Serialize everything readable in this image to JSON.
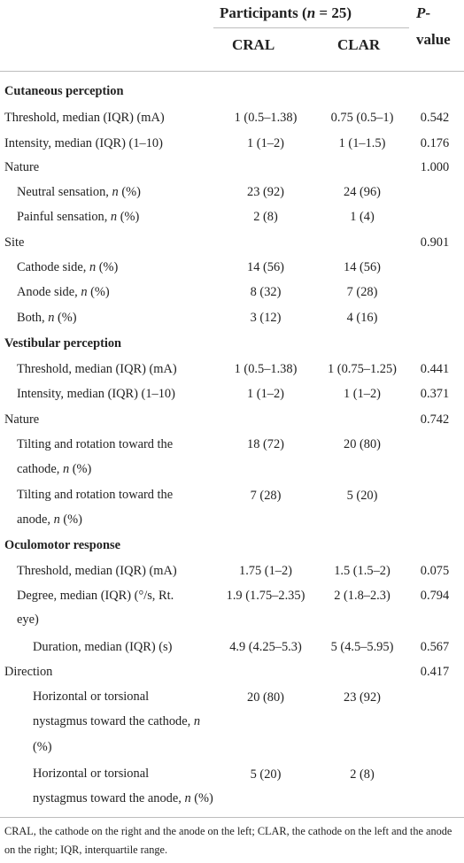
{
  "header": {
    "group_label": "Participants (",
    "group_n_var": "n",
    "group_n_val": " = 25)",
    "pvalue_var": "P",
    "pvalue_suffix": "-value",
    "col_cral": "CRAL",
    "col_clar": "CLAR"
  },
  "rows": {
    "cut_head": "Cutaneous perception",
    "cut_thr": {
      "label": "Threshold, median (IQR) (mA)",
      "cral": "1 (0.5–1.38)",
      "clar": "0.75 (0.5–1)",
      "p": "0.542"
    },
    "cut_int": {
      "label": "Intensity, median (IQR) (1–10)",
      "cral": "1 (1–2)",
      "clar": "1 (1–1.5)",
      "p": "0.176"
    },
    "cut_nat": {
      "label": "Nature",
      "p": "1.000"
    },
    "cut_neu": {
      "label": "Neutral sensation, ",
      "nvar": "n",
      "tail": " (%)",
      "cral": "23 (92)",
      "clar": "24 (96)"
    },
    "cut_pain": {
      "label": "Painful sensation, ",
      "nvar": "n",
      "tail": " (%)",
      "cral": "2 (8)",
      "clar": "1 (4)"
    },
    "cut_site": {
      "label": "Site",
      "p": "0.901"
    },
    "cut_cath": {
      "label": "Cathode side, ",
      "nvar": "n",
      "tail": " (%)",
      "cral": "14 (56)",
      "clar": "14 (56)"
    },
    "cut_anod": {
      "label": "Anode side, ",
      "nvar": "n",
      "tail": " (%)",
      "cral": "8 (32)",
      "clar": "7 (28)"
    },
    "cut_both": {
      "label": "Both, ",
      "nvar": "n",
      "tail": " (%)",
      "cral": "3 (12)",
      "clar": "4 (16)"
    },
    "ves_head": "Vestibular perception",
    "ves_thr": {
      "label": "Threshold, median (IQR) (mA)",
      "cral": "1 (0.5–1.38)",
      "clar": "1 (0.75–1.25)",
      "p": "0.441"
    },
    "ves_int": {
      "label": "Intensity, median (IQR) (1–10)",
      "cral": "1 (1–2)",
      "clar": "1 (1–2)",
      "p": "0.371"
    },
    "ves_nat": {
      "label": "Nature",
      "p": "0.742"
    },
    "ves_cath": {
      "line1": "Tilting and rotation toward the",
      "line2a": "cathode, ",
      "nvar": "n",
      "tail": " (%)",
      "cral": "18 (72)",
      "clar": "20 (80)"
    },
    "ves_anod": {
      "line1": "Tilting and rotation toward the",
      "line2a": "anode, ",
      "nvar": "n",
      "tail": " (%)",
      "cral": "7 (28)",
      "clar": "5 (20)"
    },
    "ocu_head": "Oculomotor response",
    "ocu_thr": {
      "label": "Threshold, median (IQR) (mA)",
      "cral": "1.75 (1–2)",
      "clar": "1.5 (1.5–2)",
      "p": "0.075"
    },
    "ocu_deg": {
      "line1": "Degree, median (IQR) (°/s, Rt.",
      "line2": "eye)",
      "cral": "1.9 (1.75–2.35)",
      "clar": "2 (1.8–2.3)",
      "p": "0.794"
    },
    "ocu_dur": {
      "label": "Duration, median (IQR) (s)",
      "cral": "4.9 (4.25–5.3)",
      "clar": "5 (4.5–5.95)",
      "p": "0.567"
    },
    "ocu_dir": {
      "label": "Direction",
      "p": "0.417"
    },
    "ocu_hcath": {
      "line1": "Horizontal or torsional",
      "line2a": "nystagmus toward the cathode, ",
      "nvar": "n",
      "line3": "(%)",
      "cral": "20 (80)",
      "clar": "23 (92)"
    },
    "ocu_hanod": {
      "line1": "Horizontal or torsional",
      "line2a": "nystagmus toward the anode, ",
      "nvar": "n",
      "tail": " (%)",
      "cral": "5 (20)",
      "clar": "2 (8)"
    }
  },
  "footnote": "CRAL, the cathode on the right and the anode on the left; CLAR, the cathode on the left and the anode on the right; IQR, interquartile range."
}
